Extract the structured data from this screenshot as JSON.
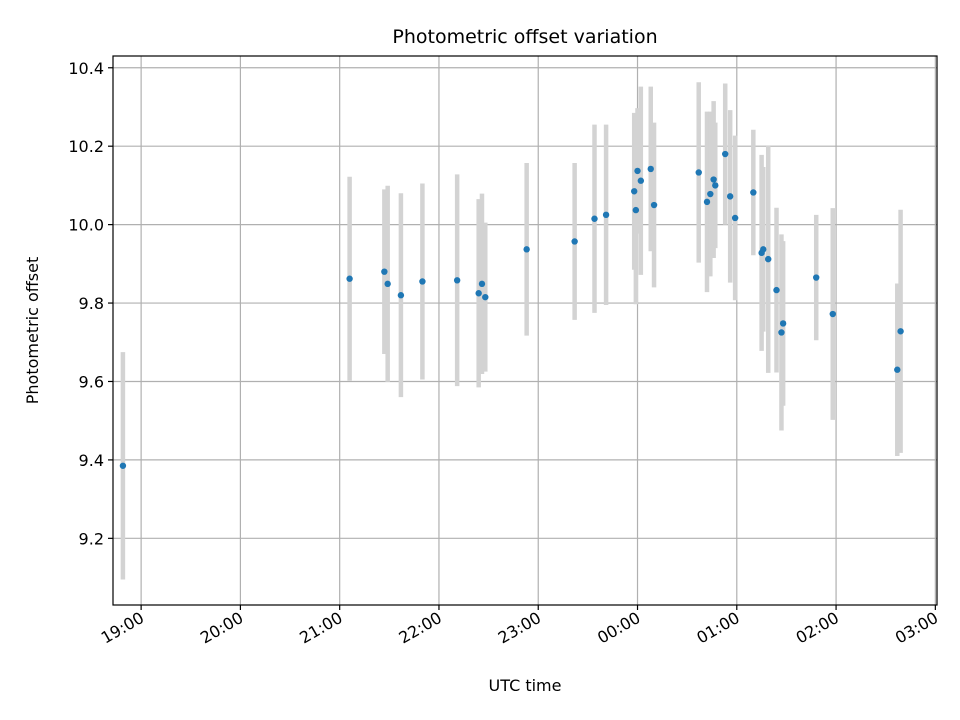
{
  "chart_data": {
    "type": "scatter",
    "title": "Photometric offset variation",
    "xlabel": "UTC time",
    "ylabel": "Photometric offset",
    "xlim": [
      "18:43",
      "03:01"
    ],
    "ylim": [
      9.03,
      10.43
    ],
    "xticks": [
      "19:00",
      "20:00",
      "21:00",
      "22:00",
      "23:00",
      "00:00",
      "01:00",
      "02:00",
      "03:00"
    ],
    "yticks": [
      "9.2",
      "9.4",
      "9.6",
      "9.8",
      "10.0",
      "10.2",
      "10.4"
    ],
    "grid": true,
    "colors": {
      "points": "#1f77b4",
      "errorbars": "#d3d3d3",
      "grid": "#b0b0b0"
    },
    "x": [
      "18:49",
      "21:06",
      "21:27",
      "21:29",
      "21:37",
      "21:50",
      "22:11",
      "22:24",
      "22:26",
      "22:28",
      "22:53",
      "23:22",
      "23:34",
      "23:41",
      "23:58",
      "23:59",
      "00:00",
      "00:02",
      "00:08",
      "00:10",
      "00:37",
      "00:42",
      "00:44",
      "00:46",
      "00:47",
      "00:53",
      "00:56",
      "00:59",
      "01:10",
      "01:15",
      "01:16",
      "01:19",
      "01:24",
      "01:27",
      "01:28",
      "01:48",
      "01:58",
      "02:37",
      "02:39"
    ],
    "y": [
      9.385,
      9.862,
      9.88,
      9.849,
      9.82,
      9.855,
      9.858,
      9.825,
      9.849,
      9.815,
      9.937,
      9.957,
      10.015,
      10.025,
      10.085,
      10.037,
      10.137,
      10.112,
      10.142,
      10.05,
      10.133,
      10.058,
      10.078,
      10.115,
      10.1,
      10.18,
      10.072,
      10.017,
      10.082,
      9.928,
      9.937,
      9.912,
      9.833,
      9.725,
      9.748,
      9.865,
      9.772,
      9.63,
      9.728
    ],
    "yerr": [
      0.29,
      0.26,
      0.21,
      0.25,
      0.26,
      0.25,
      0.27,
      0.24,
      0.23,
      0.19,
      0.22,
      0.2,
      0.24,
      0.23,
      0.2,
      0.24,
      0.16,
      0.24,
      0.21,
      0.21,
      0.23,
      0.23,
      0.21,
      0.2,
      0.16,
      0.18,
      0.22,
      0.21,
      0.16,
      0.25,
      0.21,
      0.29,
      0.21,
      0.25,
      0.21,
      0.16,
      0.27,
      0.22,
      0.31
    ]
  }
}
